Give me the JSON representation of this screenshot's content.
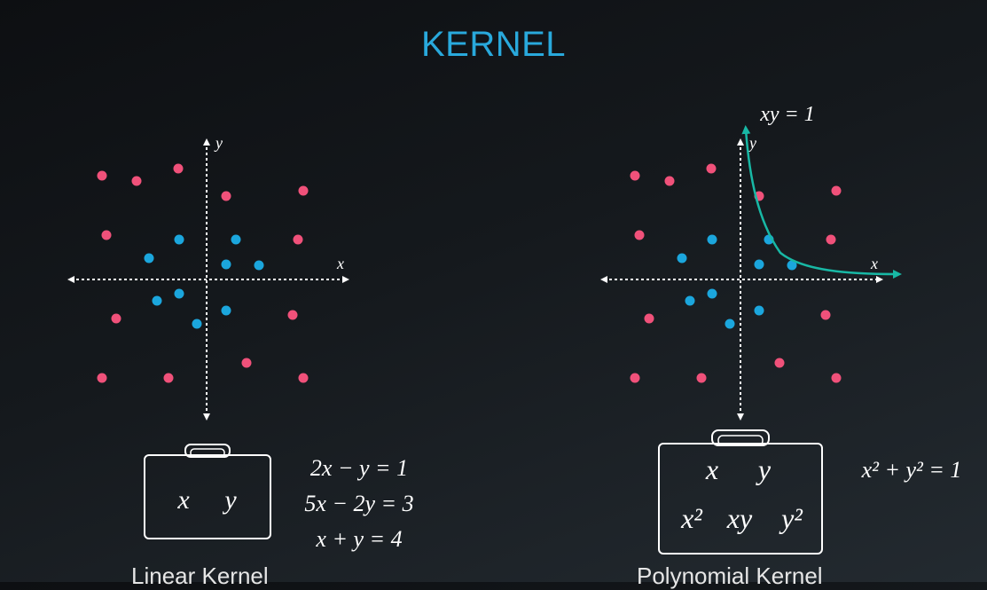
{
  "title": "KERNEL",
  "colors": {
    "accent": "#29a9dc",
    "red_point": "#f0517a",
    "blue_point": "#1ba6dd",
    "curve": "#18b8a5",
    "axis": "#ffffff"
  },
  "panels": [
    {
      "id": "linear",
      "axis_x_label": "x",
      "axis_y_label": "y",
      "bag_features": [
        "x",
        "y"
      ],
      "equations": [
        "2x − y = 1",
        "5x − 2y = 3",
        "x + y = 4"
      ],
      "caption": "Linear Kernel"
    },
    {
      "id": "polynomial",
      "axis_x_label": "x",
      "axis_y_label": "y",
      "curve_label": "xy = 1",
      "bag_features_row1": [
        "x",
        "y"
      ],
      "bag_features_row2": [
        "x²",
        "xy",
        "y²"
      ],
      "equation": "x² + y² = 1",
      "caption": "Polynomial Kernel"
    }
  ]
}
